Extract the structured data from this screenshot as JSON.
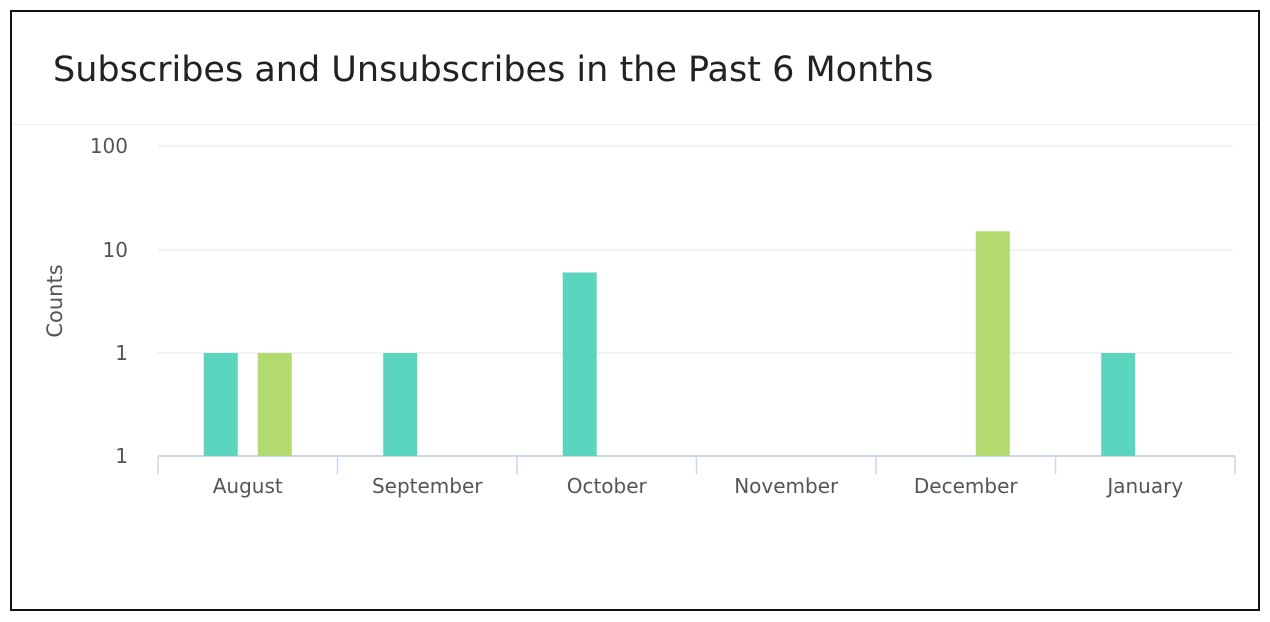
{
  "panel": {
    "title": "Subscribes and Unsubscribes in the Past 6 Months"
  },
  "chart_data": {
    "type": "bar",
    "title": "Subscribes and Unsubscribes in the Past 6 Months",
    "xlabel": "",
    "ylabel": "Counts",
    "yscale": "log",
    "yticks": [
      "1",
      "1",
      "10",
      "100"
    ],
    "categories": [
      "August",
      "September",
      "October",
      "November",
      "December",
      "January"
    ],
    "series": [
      {
        "color": "#5cd5be",
        "values": [
          1,
          1,
          6,
          null,
          null,
          1
        ]
      },
      {
        "color": "#b3da6e",
        "values": [
          1,
          null,
          null,
          null,
          15,
          null
        ]
      }
    ],
    "grid": true,
    "legend": "none"
  }
}
